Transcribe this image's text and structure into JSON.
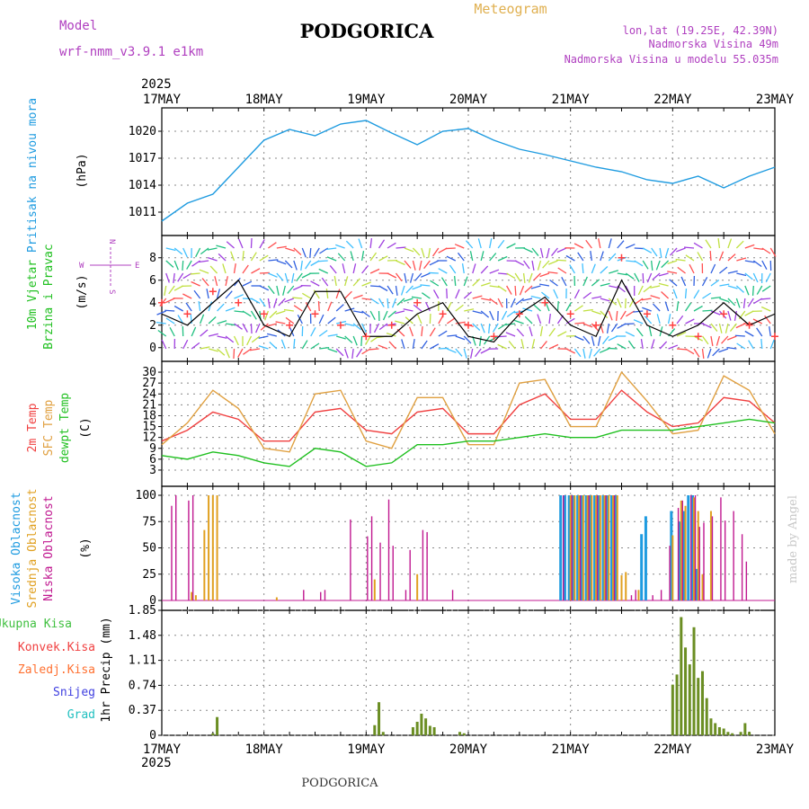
{
  "header": {
    "model_label": "Model",
    "model_name": "wrf-nmm_v3.9.1 e1km",
    "station": "PODGORICA",
    "meteogram": "Meteogram",
    "lonlat": "lon,lat (19.25E, 42.39N)",
    "altitude": "Nadmorska Visina 49m",
    "model_altitude": "Nadmorska Visina u modelu 55.035m",
    "footer_station": "PODGORICA",
    "watermark": "made by Angel"
  },
  "colors": {
    "model": "#b040c0",
    "station": "#000000",
    "meteogram": "#e0b050",
    "info": "#b040c0",
    "pressure": "#1e9be0",
    "wind_speed": "#000000",
    "gust": "#ff4040",
    "temp2m": "#f04040",
    "sfc": "#e0a040",
    "dewpt": "#20c020",
    "cloud_high": "#1e9be0",
    "cloud_mid": "#e0a020",
    "cloud_low": "#c01890",
    "total": "#40c040",
    "konvek": "#f04040",
    "zaledj": "#ff7030",
    "snijeg": "#4040e0",
    "grad": "#20c0c0",
    "precip_bar": "#6b8e23"
  },
  "time_axis": {
    "year": "2025",
    "days": [
      "17MAY",
      "18MAY",
      "19MAY",
      "20MAY",
      "21MAY",
      "22MAY",
      "23MAY"
    ]
  },
  "panels": {
    "pressure": {
      "title": "Pritisak na nivou mora",
      "unit": "(hPa)"
    },
    "wind": {
      "title1": "10m Vjetar",
      "title2": "Brzina i Pravac",
      "unit": "(m/s)",
      "compass_w": "W",
      "compass_e": "E",
      "compass_n": "N",
      "compass_s": "S"
    },
    "temp": {
      "label1": "2m Temp",
      "label2": "SFC Temp",
      "label3": "dewpt Temp",
      "unit": "(C)"
    },
    "cloud": {
      "label1": "Visoka Oblacnost",
      "label2": "Srednja Oblacnost",
      "label3": "Niska Oblacnost",
      "unit": "(%)"
    },
    "precip": {
      "labels": [
        "Ukupna Kisa",
        "Konvek.Kisa",
        "Zaledj.Kisa",
        "Snijeg",
        "Grad"
      ],
      "unit": "1hr Precip (mm)"
    }
  },
  "chart_data": [
    {
      "type": "line",
      "name": "pressure",
      "x_unit": "hours since 17MAY 00",
      "x": [
        0,
        6,
        12,
        18,
        24,
        30,
        36,
        42,
        48,
        54,
        60,
        66,
        72,
        78,
        84,
        90,
        96,
        102,
        108,
        114,
        120,
        126,
        132,
        138,
        144
      ],
      "values": [
        1010,
        1012,
        1013,
        1016,
        1019,
        1020.2,
        1019.5,
        1020.8,
        1021.2,
        1019.8,
        1018.5,
        1020,
        1020.3,
        1019,
        1018,
        1017.4,
        1016.7,
        1016,
        1015.5,
        1014.6,
        1014.2,
        1015,
        1013.7,
        1015,
        1016
      ],
      "ylim": [
        1009,
        1022
      ],
      "yticks": [
        1011,
        1014,
        1017,
        1020
      ]
    },
    {
      "type": "line",
      "name": "wind",
      "x": [
        0,
        6,
        12,
        18,
        24,
        30,
        36,
        42,
        48,
        54,
        60,
        66,
        72,
        78,
        84,
        90,
        96,
        102,
        108,
        114,
        120,
        126,
        132,
        138,
        144
      ],
      "series": [
        {
          "values": [
            3,
            2,
            4,
            6,
            2,
            1,
            5,
            5,
            1,
            1,
            3,
            4,
            1,
            0.5,
            3,
            4.5,
            2,
            1,
            6,
            2,
            1,
            2,
            4,
            2,
            3
          ]
        },
        {
          "values": [
            4,
            3,
            5,
            4,
            3,
            2,
            3,
            2,
            1,
            2,
            4,
            3,
            2,
            1,
            3,
            4,
            3,
            2,
            8,
            3,
            2,
            1,
            3,
            2,
            1
          ]
        }
      ],
      "ylim": [
        -0.5,
        9.5
      ],
      "yticks": [
        0,
        2,
        4,
        6,
        8
      ]
    },
    {
      "type": "line",
      "name": "temperature",
      "x": [
        0,
        6,
        12,
        18,
        24,
        30,
        36,
        42,
        48,
        54,
        60,
        66,
        72,
        78,
        84,
        90,
        96,
        102,
        108,
        114,
        120,
        126,
        132,
        138,
        144
      ],
      "series": [
        {
          "values": [
            11,
            14,
            19,
            17,
            11,
            11,
            19,
            20,
            14,
            13,
            19,
            20,
            13,
            13,
            21,
            24,
            17,
            17,
            25,
            19,
            15,
            16,
            23,
            22,
            16
          ]
        },
        {
          "values": [
            10,
            16,
            25,
            20,
            9,
            8,
            24,
            25,
            11,
            9,
            23,
            23,
            10,
            10,
            27,
            28,
            15,
            15,
            30,
            22,
            13,
            14,
            29,
            25,
            13
          ]
        },
        {
          "values": [
            7,
            6,
            8,
            7,
            5,
            4,
            9,
            8,
            4,
            5,
            10,
            10,
            11,
            11,
            12,
            13,
            12,
            12,
            14,
            14,
            14,
            15,
            16,
            17,
            16
          ]
        }
      ],
      "ylim": [
        1.5,
        31.5
      ],
      "yticks": [
        3,
        6,
        9,
        12,
        15,
        18,
        21,
        24,
        27,
        30
      ]
    },
    {
      "type": "bar",
      "name": "cloud",
      "ylim": [
        0,
        100
      ],
      "yticks": [
        0,
        25,
        50,
        75,
        100
      ],
      "series": [
        {
          "values": [
            [
              94,
              100
            ],
            [
              95,
              100
            ],
            [
              96,
              100
            ],
            [
              97,
              100
            ],
            [
              98,
              100
            ],
            [
              99,
              100
            ],
            [
              100,
              100
            ],
            [
              101,
              100
            ],
            [
              102,
              100
            ],
            [
              103,
              100
            ],
            [
              104,
              100
            ],
            [
              105,
              100
            ],
            [
              106,
              100
            ],
            [
              107,
              100
            ],
            [
              113,
              63
            ],
            [
              114,
              80
            ],
            [
              120,
              85
            ],
            [
              122,
              75
            ],
            [
              123,
              85
            ],
            [
              124,
              100
            ],
            [
              125,
              100
            ],
            [
              126,
              30
            ]
          ]
        },
        {
          "values": [
            [
              7,
              8
            ],
            [
              8,
              5
            ],
            [
              10,
              67
            ],
            [
              11,
              100
            ],
            [
              12,
              100
            ],
            [
              13,
              100
            ],
            [
              27,
              3
            ],
            [
              50,
              20
            ],
            [
              60,
              25
            ],
            [
              96,
              100
            ],
            [
              97,
              100
            ],
            [
              98,
              100
            ],
            [
              99,
              100
            ],
            [
              100,
              100
            ],
            [
              101,
              100
            ],
            [
              102,
              100
            ],
            [
              103,
              100
            ],
            [
              104,
              100
            ],
            [
              105,
              100
            ],
            [
              106,
              100
            ],
            [
              107,
              100
            ],
            [
              108,
              24
            ],
            [
              109,
              27
            ],
            [
              112,
              10
            ],
            [
              120,
              62
            ],
            [
              122,
              95
            ],
            [
              123,
              90
            ],
            [
              125,
              98
            ],
            [
              126,
              85
            ],
            [
              127,
              25
            ],
            [
              129,
              85
            ]
          ]
        },
        {
          "values": [
            [
              2,
              90
            ],
            [
              3,
              100
            ],
            [
              6,
              95
            ],
            [
              7,
              100
            ],
            [
              33,
              10
            ],
            [
              37,
              8
            ],
            [
              38,
              10
            ],
            [
              44,
              77
            ],
            [
              48,
              61
            ],
            [
              49,
              80
            ],
            [
              51,
              55
            ],
            [
              53,
              96
            ],
            [
              54,
              52
            ],
            [
              57,
              10
            ],
            [
              58,
              48
            ],
            [
              61,
              67
            ],
            [
              62,
              65
            ],
            [
              68,
              10
            ],
            [
              94,
              100
            ],
            [
              96,
              100
            ],
            [
              98,
              100
            ],
            [
              100,
              100
            ],
            [
              102,
              100
            ],
            [
              104,
              100
            ],
            [
              106,
              100
            ],
            [
              110,
              5
            ],
            [
              111,
              10
            ],
            [
              115,
              5
            ],
            [
              117,
              10
            ],
            [
              119,
              52
            ],
            [
              121,
              88
            ],
            [
              122,
              95
            ],
            [
              124,
              100
            ],
            [
              125,
              100
            ],
            [
              126,
              70
            ],
            [
              127,
              74
            ],
            [
              129,
              80
            ],
            [
              131,
              98
            ],
            [
              132,
              76
            ],
            [
              134,
              85
            ],
            [
              136,
              63
            ],
            [
              137,
              37
            ]
          ]
        }
      ]
    },
    {
      "type": "bar",
      "name": "precip",
      "ylim": [
        0,
        1.85
      ],
      "yticks": [
        0,
        0.37,
        0.74,
        1.11,
        1.48,
        1.85
      ],
      "values": [
        [
          12,
          0.03
        ],
        [
          13,
          0.27
        ],
        [
          50,
          0.15
        ],
        [
          51,
          0.49
        ],
        [
          52,
          0.05
        ],
        [
          59,
          0.12
        ],
        [
          60,
          0.2
        ],
        [
          61,
          0.32
        ],
        [
          62,
          0.25
        ],
        [
          63,
          0.14
        ],
        [
          64,
          0.12
        ],
        [
          70,
          0.05
        ],
        [
          71,
          0.03
        ],
        [
          120,
          0.75
        ],
        [
          121,
          0.9
        ],
        [
          122,
          1.75
        ],
        [
          123,
          1.3
        ],
        [
          124,
          1.05
        ],
        [
          125,
          1.6
        ],
        [
          126,
          0.85
        ],
        [
          127,
          0.95
        ],
        [
          128,
          0.55
        ],
        [
          129,
          0.25
        ],
        [
          130,
          0.18
        ],
        [
          131,
          0.12
        ],
        [
          132,
          0.1
        ],
        [
          133,
          0.05
        ],
        [
          134,
          0.03
        ],
        [
          136,
          0.05
        ],
        [
          137,
          0.18
        ],
        [
          138,
          0.05
        ]
      ]
    }
  ]
}
